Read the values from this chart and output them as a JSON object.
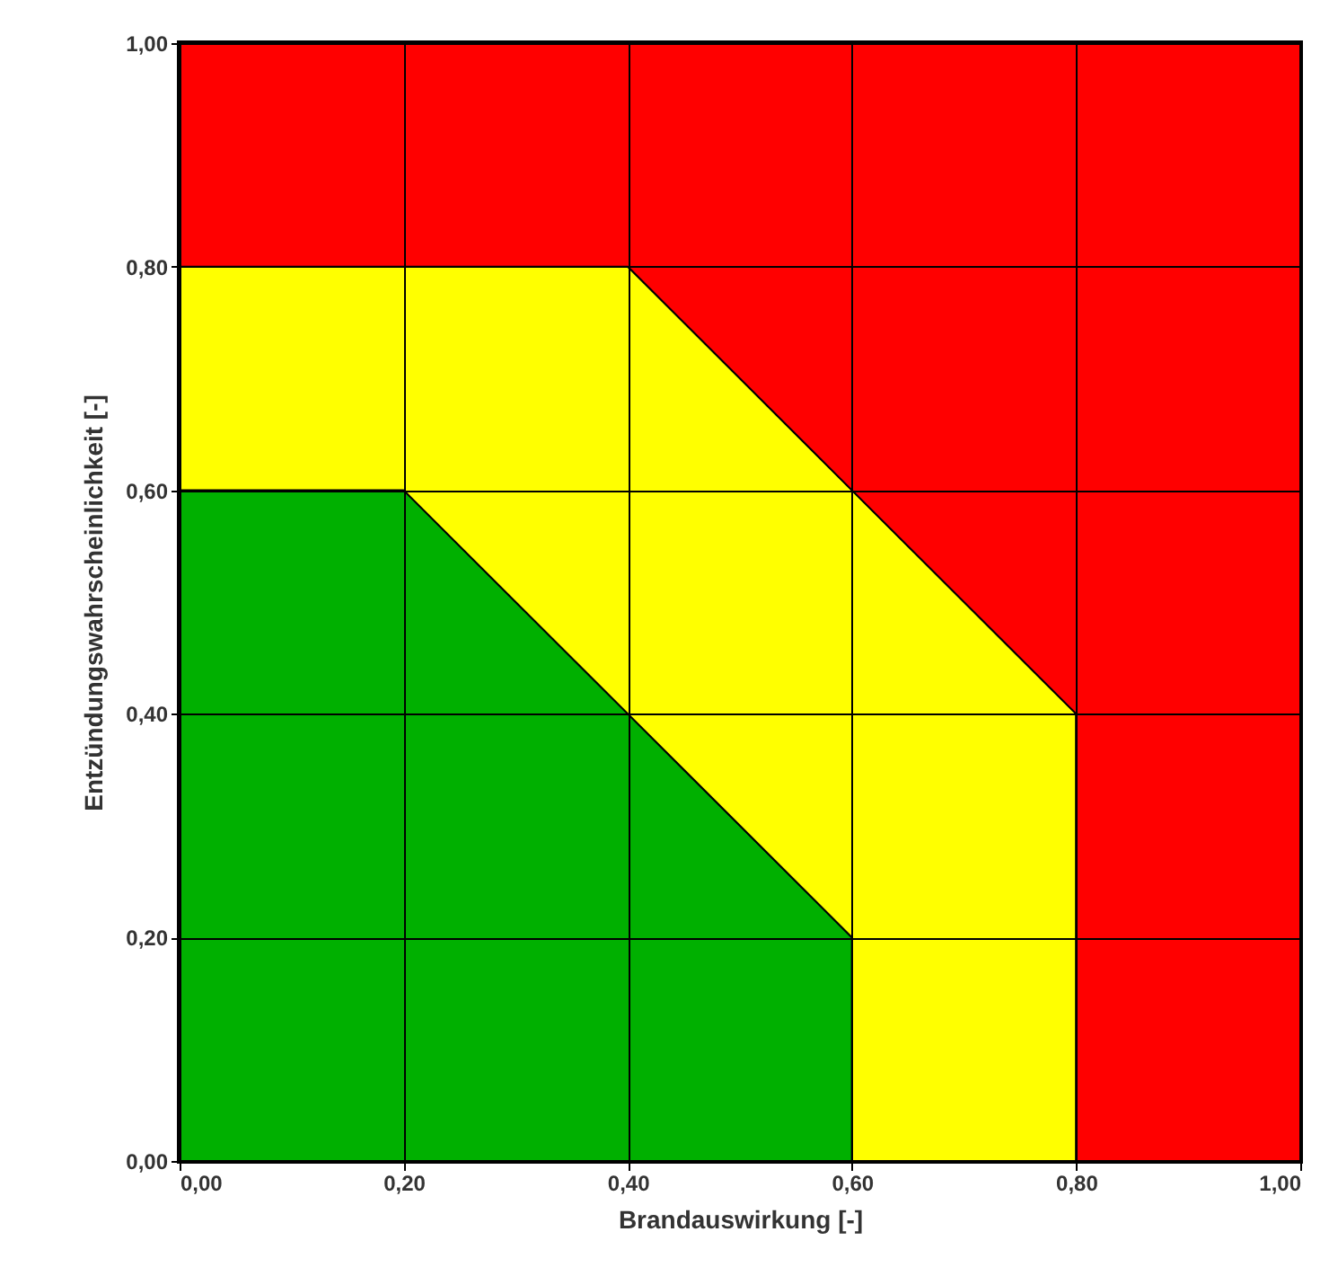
{
  "chart_data": {
    "type": "area",
    "stacked": true,
    "xlabel": "Brandauswirkung [-]",
    "ylabel": "Entzündungswahrscheinlichkeit [-]",
    "x": [
      0,
      0.2,
      0.4,
      0.6,
      0.6,
      0.8,
      0.8,
      1
    ],
    "series": [
      {
        "color": "#00b000",
        "values": [
          0.6,
          0.6,
          0.4,
          0.2,
          0,
          0,
          0,
          0
        ]
      },
      {
        "color": "#ffff00",
        "values": [
          0.2,
          0.2,
          0.4,
          0.4,
          0.6,
          0.4,
          0,
          0
        ]
      },
      {
        "color": "#ff0000",
        "values": [
          0.2,
          0.2,
          0.2,
          0.4,
          0.4,
          0.6,
          1,
          1
        ]
      }
    ],
    "xlim": [
      0,
      1
    ],
    "ylim": [
      0,
      1
    ],
    "xticks": [
      {
        "value": 0,
        "label": "0,00"
      },
      {
        "value": 0.2,
        "label": "0,20"
      },
      {
        "value": 0.4,
        "label": "0,40"
      },
      {
        "value": 0.6,
        "label": "0,60"
      },
      {
        "value": 0.8,
        "label": "0,80"
      },
      {
        "value": 1,
        "label": "1,00"
      }
    ],
    "yticks": [
      {
        "value": 0,
        "label": "0,00"
      },
      {
        "value": 0.2,
        "label": "0,20"
      },
      {
        "value": 0.4,
        "label": "0,40"
      },
      {
        "value": 0.6,
        "label": "0,60"
      },
      {
        "value": 0.8,
        "label": "0,80"
      },
      {
        "value": 1,
        "label": "1,00"
      }
    ],
    "grid": true
  }
}
